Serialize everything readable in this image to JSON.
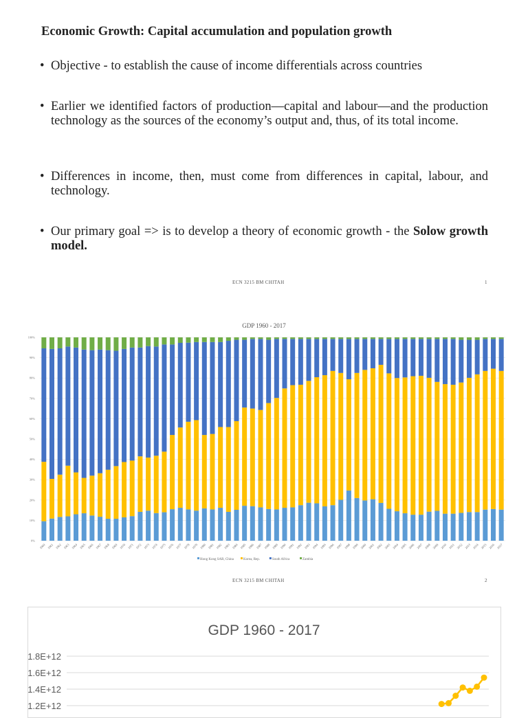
{
  "slide1": {
    "title": "Economic Growth: Capital accumulation and population growth",
    "bullets": [
      {
        "text": "Objective - to establish the cause of income differentials across countries"
      },
      {
        "text": "Earlier we identified factors of production—capital and labour—and the production technology as the sources of the economy’s output and, thus, of its total income."
      },
      {
        "text": "Differences in income, then, must come from differences in capital, labour, and technology."
      },
      {
        "text": "Our primary goal => is to develop a theory of economic growth - the ",
        "bold": "Solow growth model."
      }
    ],
    "footer": "ECN 3215 BM CHITAH",
    "page": "1"
  },
  "slide2": {
    "footer": "ECN 3215 BM CHITAH",
    "page": "2"
  },
  "chart_data": [
    {
      "type": "bar",
      "stacked": "100%",
      "title": "GDP 1960 - 2017",
      "y_ticks": [
        "0%",
        "10%",
        "20%",
        "30%",
        "40%",
        "50%",
        "60%",
        "70%",
        "80%",
        "90%",
        "100%"
      ],
      "ylim": [
        0,
        100
      ],
      "grid": true,
      "legend": "bottom",
      "categories": [
        "1960",
        "1961",
        "1962",
        "1963",
        "1964",
        "1965",
        "1966",
        "1967",
        "1968",
        "1969",
        "1970",
        "1971",
        "1972",
        "1973",
        "1974",
        "1975",
        "1976",
        "1977",
        "1978",
        "1979",
        "1980",
        "1981",
        "1982",
        "1983",
        "1984",
        "1985",
        "1986",
        "1987",
        "1988",
        "1989",
        "1990",
        "1991",
        "1992",
        "1993",
        "1994",
        "1995",
        "1996",
        "1997",
        "1998",
        "1999",
        "2000",
        "2001",
        "2002",
        "2003",
        "2004",
        "2005",
        "2006",
        "2007",
        "2008",
        "2009",
        "2010",
        "2011",
        "2012",
        "2013",
        "2014",
        "2015",
        "2016",
        "2017"
      ],
      "series": [
        {
          "name": "Hong Kong SAR, China",
          "color": "#5b9bd5",
          "values": [
            9.6,
            10.9,
            11.7,
            12.0,
            13.0,
            13.5,
            12.4,
            11.8,
            10.8,
            10.8,
            11.5,
            12.1,
            14.2,
            14.8,
            13.6,
            14.0,
            15.5,
            16.2,
            15.4,
            14.8,
            15.9,
            15.4,
            16.2,
            14.2,
            15.2,
            17.2,
            17.0,
            16.4,
            15.6,
            15.4,
            16.2,
            16.4,
            17.5,
            18.7,
            18.4,
            16.9,
            17.5,
            20.1,
            24.7,
            21.0,
            19.8,
            20.4,
            18.6,
            15.7,
            14.5,
            13.5,
            12.8,
            12.8,
            14.3,
            14.7,
            13.3,
            13.3,
            13.7,
            14.1,
            14.1,
            15.3,
            15.6,
            15.3
          ]
        },
        {
          "name": "Korea, Rep.",
          "color": "#ffc000",
          "values": [
            29.2,
            19.5,
            20.8,
            24.9,
            20.6,
            17.4,
            19.6,
            21.4,
            24.1,
            25.9,
            27.2,
            27.3,
            27.3,
            26.1,
            28.2,
            29.8,
            36.5,
            39.5,
            43.1,
            44.5,
            36.1,
            37.1,
            39.7,
            41.7,
            43.6,
            48.3,
            48.0,
            47.9,
            52.1,
            54.8,
            58.7,
            60.1,
            59.2,
            59.9,
            62.0,
            64.5,
            66.0,
            62.4,
            54.7,
            61.5,
            64.2,
            64.4,
            67.9,
            66.6,
            65.5,
            66.8,
            68.1,
            68.3,
            65.8,
            63.4,
            63.7,
            63.4,
            64.1,
            66.0,
            67.7,
            68.2,
            69.0,
            68.2
          ]
        },
        {
          "name": "South Africa",
          "color": "#4472c4",
          "values": [
            55.8,
            63.9,
            62.1,
            58.6,
            61.4,
            63.1,
            61.7,
            60.8,
            58.8,
            56.7,
            55.6,
            55.6,
            53.5,
            54.8,
            53.7,
            52.7,
            44.5,
            41.6,
            38.9,
            38.4,
            45.7,
            45.2,
            41.8,
            42.4,
            40.0,
            33.3,
            34.2,
            34.9,
            31.1,
            29.0,
            24.3,
            22.7,
            22.5,
            20.6,
            18.8,
            17.8,
            15.7,
            16.7,
            19.8,
            16.7,
            15.2,
            14.4,
            12.7,
            16.9,
            19.2,
            18.9,
            18.3,
            18.1,
            19.1,
            21.1,
            22.2,
            22.5,
            21.0,
            18.7,
            17.0,
            15.7,
            14.6,
            15.7
          ]
        },
        {
          "name": "Zambia",
          "color": "#70ad47",
          "values": [
            5.4,
            5.7,
            5.4,
            4.5,
            5.0,
            6.0,
            6.3,
            6.0,
            6.3,
            6.6,
            5.7,
            5.0,
            5.0,
            4.3,
            4.5,
            3.5,
            3.5,
            2.7,
            2.6,
            2.3,
            2.3,
            2.3,
            2.3,
            1.7,
            1.2,
            1.2,
            0.8,
            0.8,
            1.2,
            0.8,
            0.8,
            0.8,
            0.8,
            0.8,
            0.8,
            0.8,
            0.8,
            0.8,
            0.8,
            0.8,
            0.8,
            0.8,
            0.8,
            0.8,
            0.8,
            0.8,
            0.8,
            0.8,
            0.8,
            0.8,
            0.8,
            0.8,
            1.2,
            1.2,
            1.2,
            0.8,
            0.8,
            0.8
          ]
        }
      ]
    },
    {
      "type": "line",
      "title": "GDP 1960 - 2017",
      "y_ticks": [
        "1.8E+12",
        "1.6E+12",
        "1.4E+12",
        "1.2E+12"
      ],
      "grid": true,
      "series": [
        {
          "color": "#ffc000",
          "x": [
            "2011",
            "2012",
            "2013",
            "2014",
            "2015",
            "2016",
            "2017"
          ],
          "values": [
            1220000000000.0,
            1230000000000.0,
            1320000000000.0,
            1420000000000.0,
            1380000000000.0,
            1430000000000.0,
            1540000000000.0
          ]
        }
      ]
    }
  ]
}
